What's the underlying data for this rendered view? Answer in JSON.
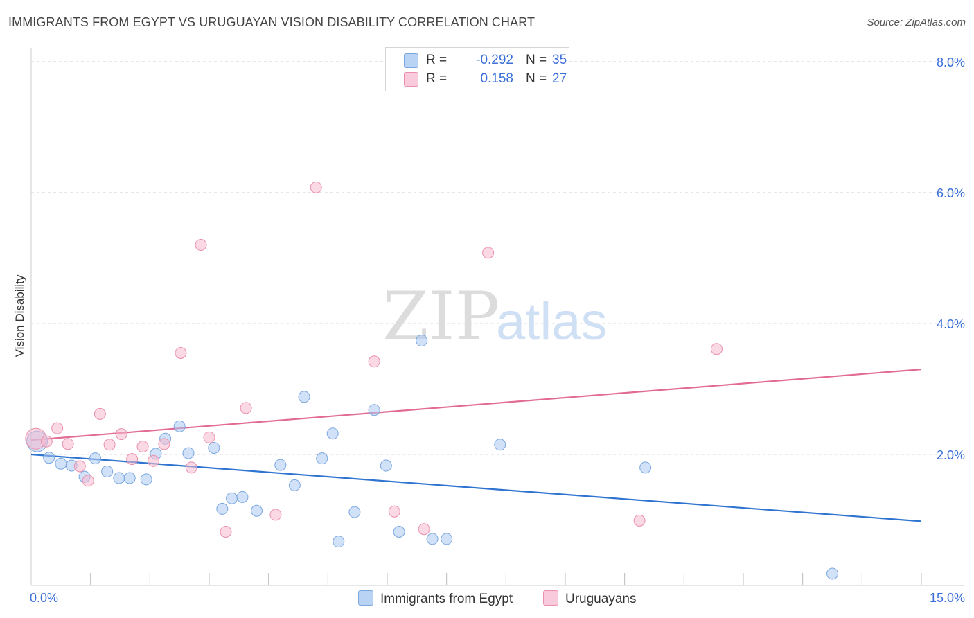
{
  "header": {
    "title": "IMMIGRANTS FROM EGYPT VS URUGUAYAN VISION DISABILITY CORRELATION CHART",
    "source": "Source: ZipAtlas.com"
  },
  "legend": {
    "rows": [
      {
        "r_label": "R =",
        "r_value": "-0.292",
        "n_label": "N =",
        "n_value": "35"
      },
      {
        "r_label": "R =",
        "r_value": "0.158",
        "n_label": "N =",
        "n_value": "27"
      }
    ]
  },
  "bottom_legend": {
    "series1": "Immigrants from Egypt",
    "series2": "Uruguayans"
  },
  "watermark": {
    "part1": "ZIP",
    "part2": "atlas"
  },
  "colors": {
    "blue_fill": "#a9c8f2",
    "blue_stroke": "#7aa7e0",
    "blue_line": "#2f74d0",
    "pink_fill": "#f6b9cd",
    "pink_stroke": "#eb8fac",
    "pink_line": "#e26b96",
    "tick_label": "#3a6fd8",
    "grid": "#d8d8d8"
  },
  "chart_data": {
    "type": "scatter",
    "title": "IMMIGRANTS FROM EGYPT VS URUGUAYAN VISION DISABILITY CORRELATION CHART",
    "xlabel": "",
    "ylabel": "Vision Disability",
    "xlim": [
      0,
      15
    ],
    "ylim": [
      0,
      8.2
    ],
    "x_tick_labels": [
      {
        "value": 0,
        "label": "0.0%"
      },
      {
        "value": 15,
        "label": "15.0%"
      }
    ],
    "y_tick_labels": [
      {
        "value": 2,
        "label": "2.0%"
      },
      {
        "value": 4,
        "label": "4.0%"
      },
      {
        "value": 6,
        "label": "6.0%"
      },
      {
        "value": 8,
        "label": "8.0%"
      }
    ],
    "series": [
      {
        "name": "Immigrants from Egypt",
        "color": "#a9c8f2",
        "r": -0.292,
        "n": 35,
        "trend": {
          "x": [
            0,
            15
          ],
          "y": [
            2.0,
            0.98
          ]
        },
        "points": [
          {
            "x": 0.1,
            "y": 2.2,
            "big": true
          },
          {
            "x": 0.3,
            "y": 1.95
          },
          {
            "x": 0.5,
            "y": 1.86
          },
          {
            "x": 0.68,
            "y": 1.83
          },
          {
            "x": 0.9,
            "y": 1.66
          },
          {
            "x": 1.08,
            "y": 1.94
          },
          {
            "x": 1.28,
            "y": 1.74
          },
          {
            "x": 1.48,
            "y": 1.64
          },
          {
            "x": 1.66,
            "y": 1.64
          },
          {
            "x": 1.94,
            "y": 1.62
          },
          {
            "x": 2.1,
            "y": 2.01
          },
          {
            "x": 2.26,
            "y": 2.24
          },
          {
            "x": 2.5,
            "y": 2.43
          },
          {
            "x": 2.65,
            "y": 2.02
          },
          {
            "x": 3.08,
            "y": 2.1
          },
          {
            "x": 3.22,
            "y": 1.17
          },
          {
            "x": 3.38,
            "y": 1.33
          },
          {
            "x": 3.56,
            "y": 1.35
          },
          {
            "x": 3.8,
            "y": 1.14
          },
          {
            "x": 4.2,
            "y": 1.84
          },
          {
            "x": 4.44,
            "y": 1.53
          },
          {
            "x": 4.6,
            "y": 2.88
          },
          {
            "x": 4.9,
            "y": 1.94
          },
          {
            "x": 5.08,
            "y": 2.32
          },
          {
            "x": 5.18,
            "y": 0.67
          },
          {
            "x": 5.45,
            "y": 1.12
          },
          {
            "x": 5.78,
            "y": 2.68
          },
          {
            "x": 5.98,
            "y": 1.83
          },
          {
            "x": 6.2,
            "y": 0.82
          },
          {
            "x": 6.58,
            "y": 3.74
          },
          {
            "x": 6.76,
            "y": 0.71
          },
          {
            "x": 7.0,
            "y": 0.71
          },
          {
            "x": 7.9,
            "y": 2.15
          },
          {
            "x": 10.35,
            "y": 1.8
          },
          {
            "x": 13.5,
            "y": 0.18
          }
        ]
      },
      {
        "name": "Uruguayans",
        "color": "#f6b9cd",
        "r": 0.158,
        "n": 27,
        "trend": {
          "x": [
            0,
            15
          ],
          "y": [
            2.22,
            3.3
          ]
        },
        "points": [
          {
            "x": 0.08,
            "y": 2.24,
            "big": true
          },
          {
            "x": 0.26,
            "y": 2.2
          },
          {
            "x": 0.44,
            "y": 2.4
          },
          {
            "x": 0.62,
            "y": 2.16
          },
          {
            "x": 0.82,
            "y": 1.82
          },
          {
            "x": 0.96,
            "y": 1.6
          },
          {
            "x": 1.16,
            "y": 2.62
          },
          {
            "x": 1.32,
            "y": 2.15
          },
          {
            "x": 1.52,
            "y": 2.31
          },
          {
            "x": 1.7,
            "y": 1.93
          },
          {
            "x": 1.88,
            "y": 2.12
          },
          {
            "x": 2.06,
            "y": 1.9
          },
          {
            "x": 2.24,
            "y": 2.16
          },
          {
            "x": 2.52,
            "y": 3.55
          },
          {
            "x": 2.7,
            "y": 1.8
          },
          {
            "x": 2.86,
            "y": 5.2
          },
          {
            "x": 3.0,
            "y": 2.26
          },
          {
            "x": 3.28,
            "y": 0.82
          },
          {
            "x": 3.62,
            "y": 2.71
          },
          {
            "x": 4.12,
            "y": 1.08
          },
          {
            "x": 4.8,
            "y": 6.08
          },
          {
            "x": 5.78,
            "y": 3.42
          },
          {
            "x": 6.12,
            "y": 1.13
          },
          {
            "x": 6.62,
            "y": 0.86
          },
          {
            "x": 7.7,
            "y": 5.08
          },
          {
            "x": 10.25,
            "y": 0.99
          },
          {
            "x": 11.55,
            "y": 3.61
          }
        ]
      }
    ]
  }
}
